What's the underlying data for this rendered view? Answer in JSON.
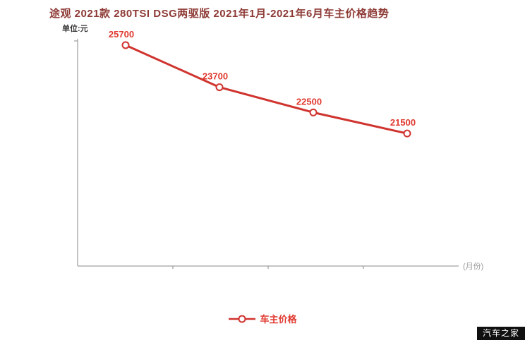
{
  "title": "途观 2021款 280TSI DSG两驱版 2021年1月-2021年6月车主价格趋势",
  "unit_label": "单位:元",
  "x_axis_end_label": "(月份)",
  "legend": {
    "label": "车主价格"
  },
  "watermark": "汽车之家",
  "colors": {
    "title": "#8e3b36",
    "line": "#d0342f",
    "label": "#e0392f",
    "axis": "#8a8a8a",
    "axis_end_label": "#999999",
    "unit_label": "#333333",
    "watermark_bg": "#101010"
  },
  "chart_data": {
    "type": "line",
    "title": "途观 2021款 280TSI DSG两驱版 2021年1月-2021年6月车主价格趋势",
    "ylabel": "单位:元",
    "xlabel": "月份",
    "categories": [
      "",
      "",
      "",
      ""
    ],
    "series": [
      {
        "name": "车主价格",
        "values": [
          25700,
          23700,
          22500,
          21500
        ]
      }
    ],
    "point_labels": [
      "25700",
      "23700",
      "22500",
      "21500"
    ],
    "ylim": [
      15200,
      26000
    ],
    "grid": false,
    "legend_position": "bottom",
    "marker": "open-circle"
  }
}
